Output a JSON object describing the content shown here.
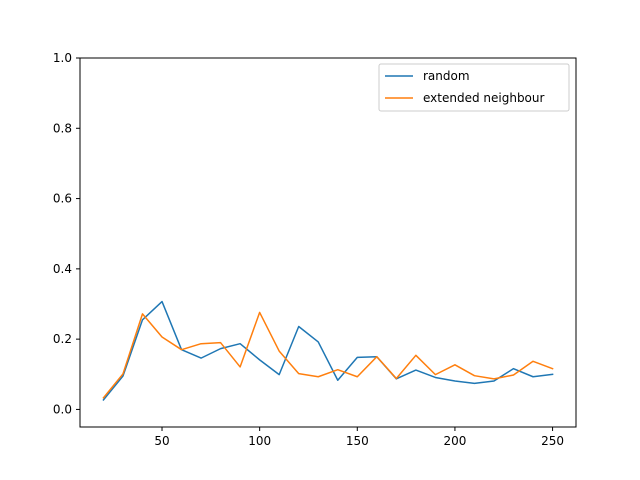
{
  "chart_data": {
    "type": "line",
    "title": "",
    "xlabel": "",
    "ylabel": "",
    "xlim": [
      8,
      262
    ],
    "ylim": [
      -0.05,
      1.0
    ],
    "xticks": [
      50,
      100,
      150,
      200,
      250
    ],
    "xtick_labels": [
      "50",
      "100",
      "150",
      "200",
      "250"
    ],
    "yticks": [
      0.0,
      0.2,
      0.4,
      0.6,
      0.8,
      1.0
    ],
    "ytick_labels": [
      "0.0",
      "0.2",
      "0.4",
      "0.6",
      "0.8",
      "1.0"
    ],
    "grid": false,
    "legend_position": "top-right",
    "x": [
      20,
      30,
      40,
      50,
      60,
      70,
      80,
      90,
      100,
      110,
      120,
      130,
      140,
      150,
      160,
      170,
      180,
      190,
      200,
      210,
      220,
      230,
      240,
      250
    ],
    "series": [
      {
        "name": "random",
        "color": "#1f77b4",
        "values": [
          0.027,
          0.095,
          0.255,
          0.307,
          0.17,
          0.146,
          0.173,
          0.187,
          0.141,
          0.099,
          0.236,
          0.192,
          0.083,
          0.148,
          0.15,
          0.087,
          0.112,
          0.091,
          0.081,
          0.074,
          0.081,
          0.116,
          0.093,
          0.1
        ]
      },
      {
        "name": "extended neighbour",
        "color": "#ff7f0e",
        "values": [
          0.033,
          0.101,
          0.272,
          0.206,
          0.17,
          0.187,
          0.19,
          0.121,
          0.276,
          0.166,
          0.102,
          0.093,
          0.113,
          0.093,
          0.15,
          0.088,
          0.154,
          0.099,
          0.127,
          0.096,
          0.087,
          0.098,
          0.137,
          0.116
        ]
      }
    ]
  }
}
